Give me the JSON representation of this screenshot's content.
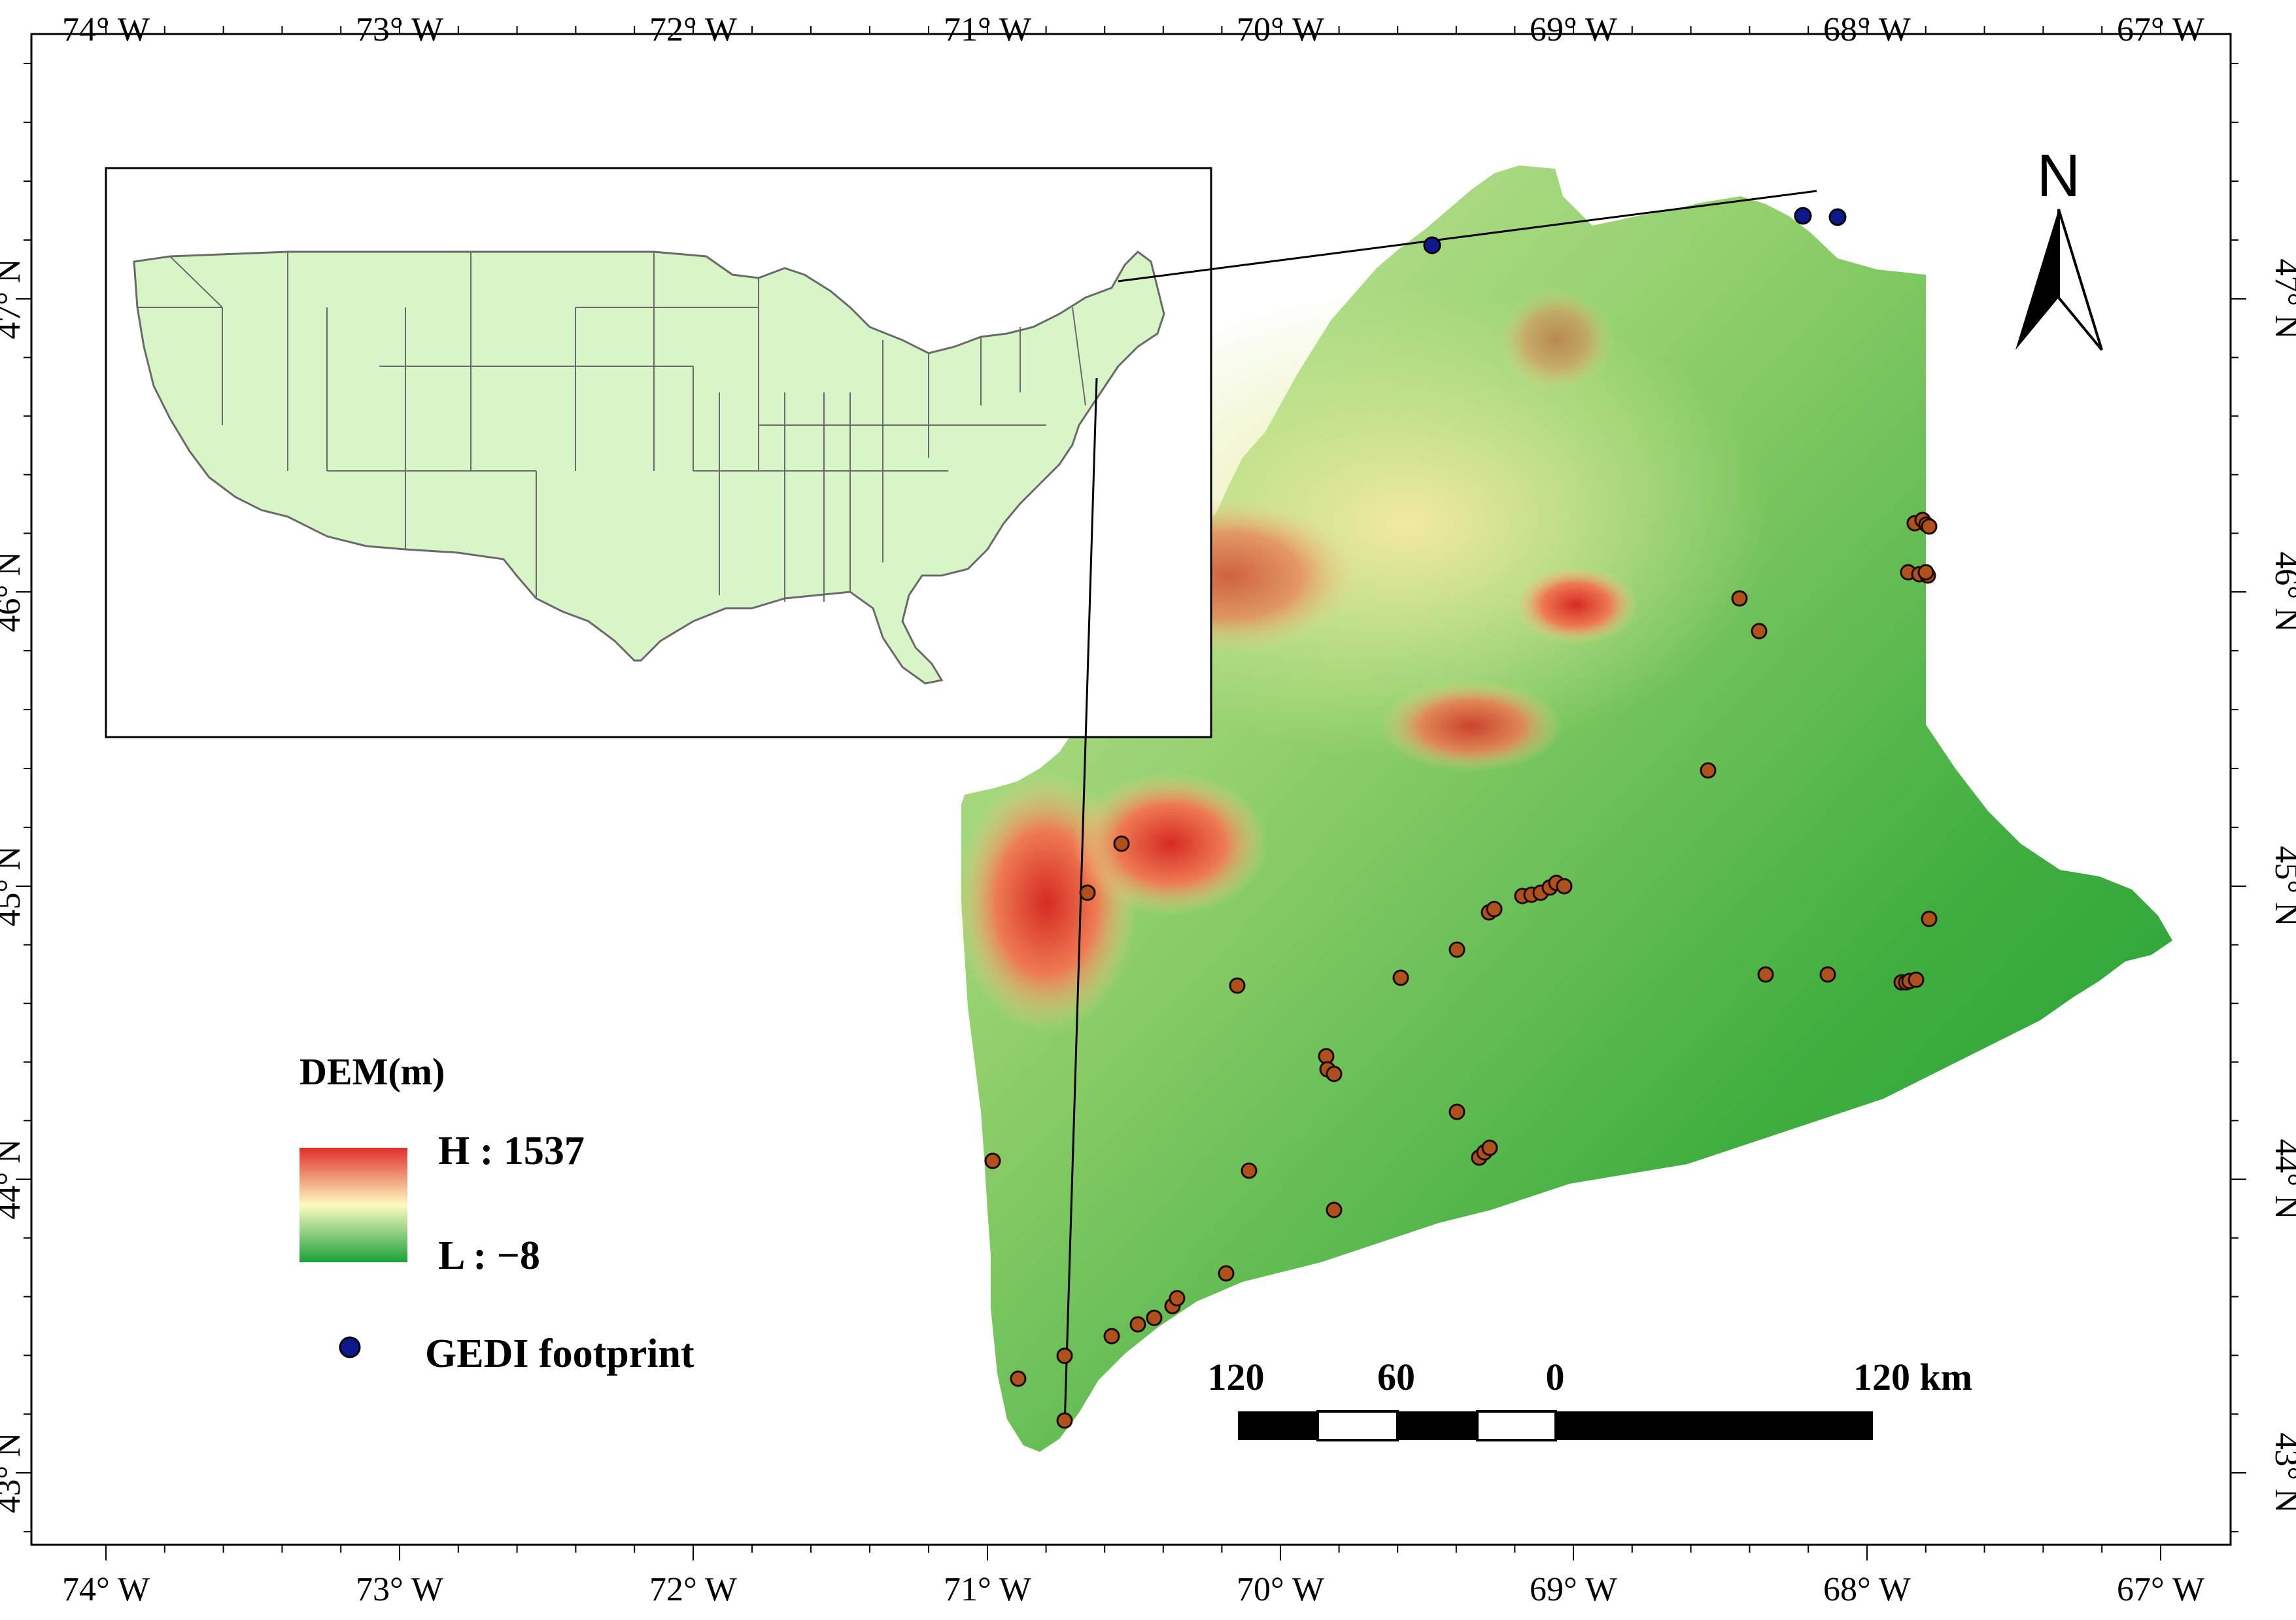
{
  "axes": {
    "longitude_labels": [
      "74° W",
      "73° W",
      "72° W",
      "71° W",
      "70° W",
      "69° W",
      "68° W",
      "67° W"
    ],
    "latitude_labels": [
      "47° N",
      "46° N",
      "45° N",
      "44° N",
      "43° N"
    ]
  },
  "north_arrow": {
    "label": "N"
  },
  "legend": {
    "title": "DEM(m)",
    "high_label": "H : 1537",
    "low_label": "L :  −8",
    "footprint_label": "GEDI footprint",
    "colors": {
      "high": "#e0302a",
      "mid": "#fdfbc0",
      "low": "#1aa13a",
      "footprint": "#0d1a8c"
    }
  },
  "scale_bar": {
    "labels": [
      "120",
      "60",
      "0",
      "120 km"
    ]
  },
  "inset": {
    "name": "contiguous-us-inset",
    "fill": "#d8f5c8",
    "stroke": "#5a5a5a"
  },
  "colors": {
    "dem_high": "#d8261e",
    "dem_mid": "#f4f1b0",
    "dem_low": "#1d9e35",
    "site_dot": "#b0501c",
    "gedi_dot": "#0d1a8c"
  }
}
